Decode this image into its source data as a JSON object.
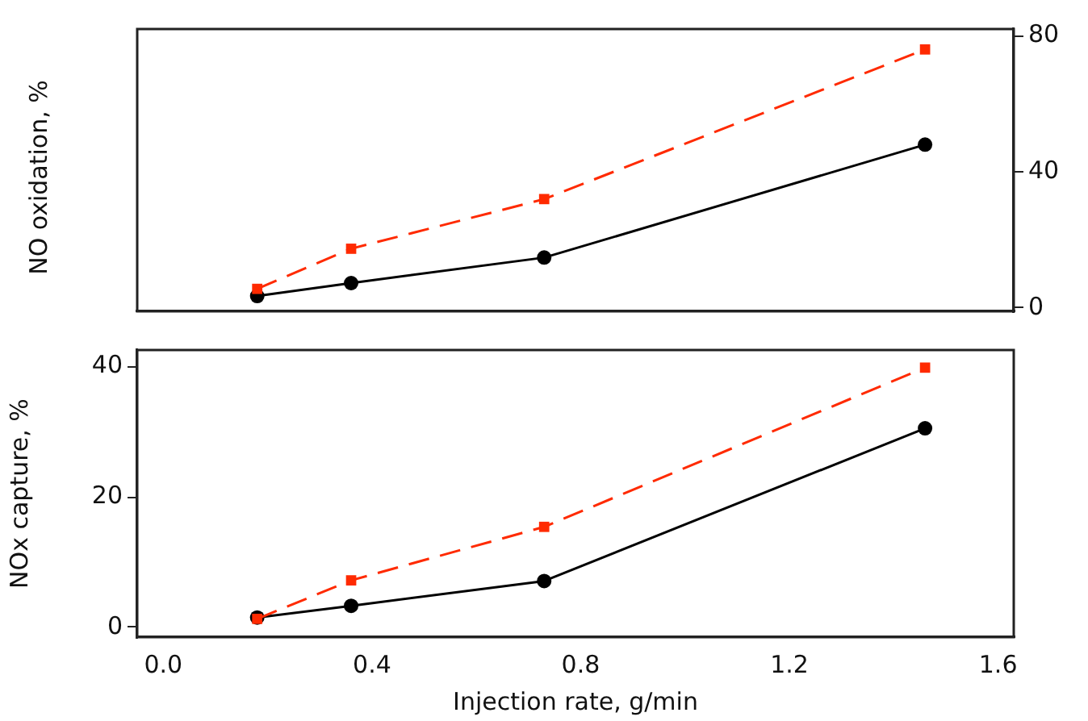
{
  "chart_data": [
    {
      "type": "line",
      "ylabel": "NO oxidation, %",
      "x": [
        0.18,
        0.36,
        0.73,
        1.46
      ],
      "xlim": [
        -0.05,
        1.63
      ],
      "ylim": [
        -1,
        82
      ],
      "yticks": [
        0,
        40,
        80
      ],
      "tick_labels": "y",
      "grid": false,
      "legend": false,
      "series": [
        {
          "color": "#000000",
          "marker": "circle",
          "line_style": "solid",
          "values": [
            3.5,
            7.3,
            14.8,
            48
          ]
        },
        {
          "color": "#ff2a00",
          "marker": "square",
          "line_style": "dashed",
          "values": [
            5.6,
            17.4,
            32,
            76
          ]
        }
      ]
    },
    {
      "type": "line",
      "xlabel": "Injection rate, g/min",
      "ylabel": "NOx capture, %",
      "x": [
        0.18,
        0.36,
        0.73,
        1.46
      ],
      "xlim": [
        -0.05,
        1.63
      ],
      "xticks": [
        {
          "value": 0,
          "label": "0.0"
        },
        0.4,
        0.8,
        1.2,
        1.6
      ],
      "ylim": [
        -1.5,
        42.5
      ],
      "yticks": [
        0,
        20,
        40
      ],
      "grid": false,
      "legend": false,
      "series": [
        {
          "color": "#000000",
          "marker": "circle",
          "line_style": "solid",
          "values": [
            1.5,
            3.3,
            7.1,
            30.5
          ]
        },
        {
          "color": "#ff2a00",
          "marker": "square",
          "line_style": "dashed",
          "values": [
            1.3,
            7.2,
            15.4,
            39.8
          ]
        }
      ]
    }
  ]
}
